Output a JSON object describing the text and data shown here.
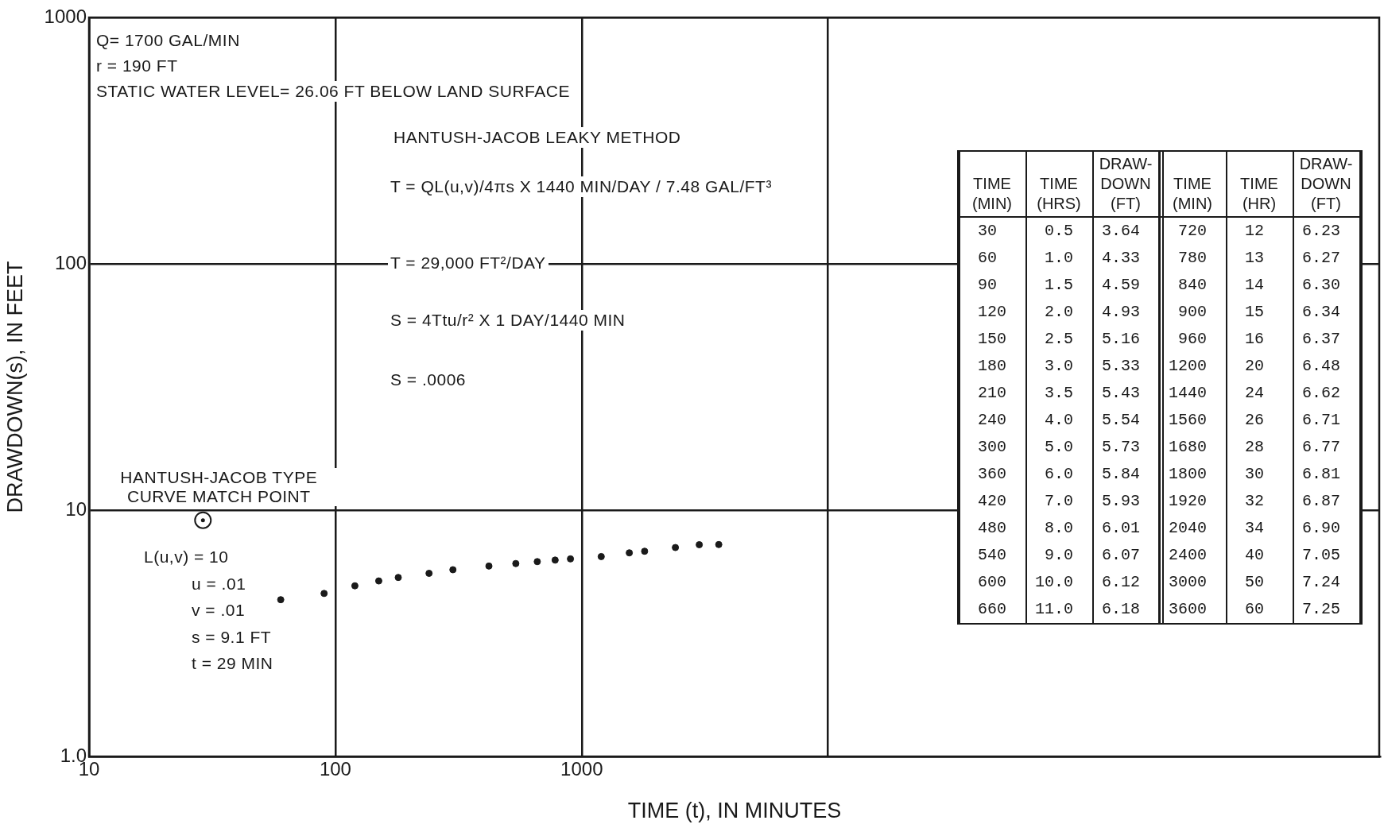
{
  "chart_data": [
    {
      "type": "scatter",
      "xlabel": "TIME (t), IN MINUTES",
      "ylabel": "DRAWDOWN(s), IN FEET",
      "x": [
        60,
        90,
        120,
        150,
        180,
        240,
        300,
        420,
        540,
        660,
        780,
        900,
        1200,
        1560,
        1800,
        2400,
        3000,
        3600
      ],
      "series": [
        {
          "color": "#1a1a1a",
          "values": [
            4.33,
            4.59,
            4.93,
            5.16,
            5.33,
            5.54,
            5.73,
            5.93,
            6.07,
            6.18,
            6.27,
            6.34,
            6.48,
            6.71,
            6.81,
            7.05,
            7.24,
            7.25
          ]
        }
      ],
      "log": "xy",
      "xlim": [
        10,
        1740000
      ],
      "ylim": [
        1,
        1000
      ],
      "xticks": [
        10,
        100,
        1000,
        {
          "value": 10000,
          "label": null
        }
      ],
      "yticks": [
        {
          "value": 1,
          "label": "1.0"
        },
        10,
        100,
        1000
      ],
      "grid": true,
      "legend": false,
      "marker": "circle",
      "annotations": [
        "Q= 1700 GAL/MIN",
        "r = 190 FT",
        "STATIC WATER LEVEL= 26.06 FT BELOW LAND SURFACE",
        "HANTUSH-JACOB LEAKY METHOD",
        "T = QL(u,v)/4πs X 1440 MIN/DAY / 7.48 GAL/FT³",
        "T = 29,000 FT²/DAY",
        "S = 4Ttu/r² X 1 DAY/1440 MIN",
        "S = .0006",
        {
          "text": "HANTUSH-JACOB TYPE CURVE MATCH POINT",
          "x": 29,
          "y": 9.1
        },
        "L(u,v) = 10",
        "u = .01",
        "v = .01",
        "s = 9.1 FT",
        "t = 29 MIN"
      ]
    },
    {
      "type": "other",
      "annotations": [
        "TIME (MIN)",
        "TIME (HRS)",
        "DRAW- DOWN (FT)",
        "TIME (MIN)",
        "TIME (HR)",
        "DRAW- DOWN (FT)",
        "30",
        "0.5",
        "3.64",
        "720",
        "12",
        "6.23",
        "60",
        "1.0",
        "4.33",
        "780",
        "13",
        "6.27",
        "90",
        "1.5",
        "4.59",
        "840",
        "14",
        "6.30",
        "120",
        "2.0",
        "4.93",
        "900",
        "15",
        "6.34",
        "150",
        "2.5",
        "5.16",
        "960",
        "16",
        "6.37",
        "180",
        "3.0",
        "5.33",
        "1200",
        "20",
        "6.48",
        "210",
        "3.5",
        "5.43",
        "1440",
        "24",
        "6.62",
        "240",
        "4.0",
        "5.54",
        "1560",
        "26",
        "6.71",
        "300",
        "5.0",
        "5.73",
        "1680",
        "28",
        "6.77",
        "360",
        "6.0",
        "5.84",
        "1800",
        "30",
        "6.81",
        "420",
        "7.0",
        "5.93",
        "1920",
        "32",
        "6.87",
        "480",
        "8.0",
        "6.01",
        "2040",
        "34",
        "6.90",
        "540",
        "9.0",
        "6.07",
        "2400",
        "40",
        "7.05",
        "600",
        "10.0",
        "6.12",
        "3000",
        "50",
        "7.24",
        "660",
        "11.0",
        "6.18",
        "3600",
        "60",
        "7.25"
      ]
    }
  ]
}
